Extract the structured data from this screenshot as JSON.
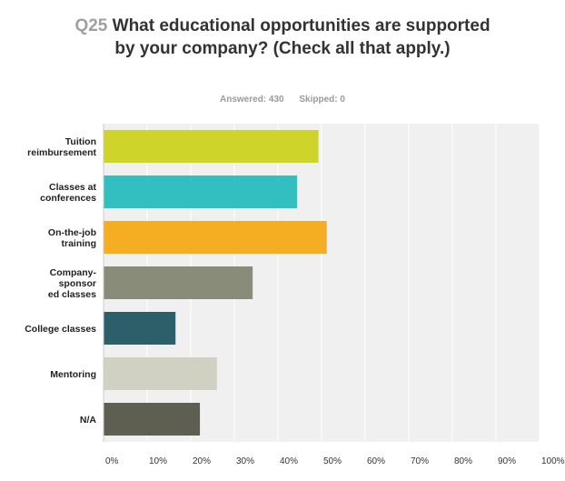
{
  "header": {
    "question_number": "Q25",
    "question_text": "What educational opportunities are supported by your company? (Check all that apply.)",
    "answered": "Answered: 430",
    "skipped": "Skipped: 0"
  },
  "chart_data": {
    "type": "bar",
    "orientation": "horizontal",
    "categories": [
      [
        "Tuition",
        "reimbursement"
      ],
      [
        "Classes at",
        "conferences"
      ],
      [
        "On-the-job",
        "training"
      ],
      [
        "Company-",
        "sponsor",
        "ed classes"
      ],
      [
        "College classes"
      ],
      [
        "Mentoring"
      ],
      [
        "N/A"
      ]
    ],
    "values": [
      49.3,
      44.4,
      51.2,
      34.2,
      16.5,
      26.0,
      22.1
    ],
    "colors": [
      "#cfd42a",
      "#33bfc0",
      "#f5ae22",
      "#8a8c7a",
      "#2d5f6b",
      "#d0d0c3",
      "#5e5e52"
    ],
    "xlim": [
      0,
      100
    ],
    "xticks": [
      "0%",
      "10%",
      "20%",
      "30%",
      "40%",
      "50%",
      "60%",
      "70%",
      "80%",
      "90%",
      "100%"
    ],
    "grid": true,
    "plot_background": "#f0f0f0"
  }
}
